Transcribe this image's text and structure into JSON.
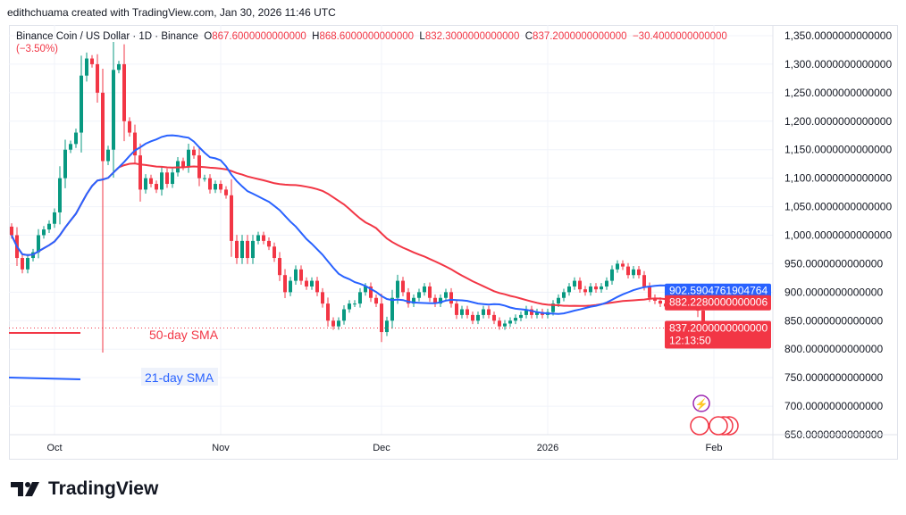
{
  "credit": "edithchuama created with TradingView.com, Jan 30, 2026 11:46 UTC",
  "legend": {
    "symbol": "Binance Coin / US Dollar · 1D · Binance",
    "o_label": "O",
    "o": "867.6000000000000",
    "h_label": "H",
    "h": "868.6000000000000",
    "l_label": "L",
    "l": "832.3000000000000",
    "c_label": "C",
    "c": "837.2000000000000",
    "change": "−30.4000000000000 (−3.50%)"
  },
  "colors": {
    "up": "#089981",
    "down": "#f23645",
    "sma21": "#2962ff",
    "sma50": "#f23645",
    "grid": "#f0f3fa"
  },
  "chart_data": {
    "type": "candlestick",
    "start_date": "2025-09-23",
    "closes": [
      1000,
      960,
      940,
      960,
      970,
      1000,
      1010,
      1020,
      1040,
      1100,
      1150,
      1160,
      1180,
      1280,
      1310,
      1300,
      1250,
      1130,
      1150,
      1290,
      1300,
      1200,
      1180,
      1140,
      1080,
      1100,
      1090,
      1080,
      1110,
      1090,
      1110,
      1130,
      1120,
      1150,
      1140,
      1100,
      1100,
      1080,
      1090,
      1080,
      1070,
      990,
      960,
      990,
      960,
      990,
      1000,
      990,
      980,
      960,
      930,
      900,
      920,
      940,
      920,
      910,
      920,
      900,
      880,
      850,
      840,
      850,
      870,
      880,
      880,
      900,
      910,
      890,
      880,
      830,
      850,
      890,
      920,
      900,
      880,
      890,
      900,
      910,
      890,
      880,
      890,
      900,
      880,
      860,
      870,
      860,
      850,
      860,
      870,
      860,
      850,
      840,
      845,
      850,
      855,
      860,
      870,
      860,
      865,
      860,
      865,
      880,
      890,
      900,
      910,
      920,
      905,
      900,
      910,
      905,
      910,
      920,
      940,
      950,
      945,
      930,
      940,
      930,
      910,
      890,
      885,
      880,
      875,
      880,
      885,
      890,
      895,
      900,
      867.6,
      837.2
    ],
    "ylim": [
      650,
      1350
    ],
    "y_ticks": [
      "1,350.0000000000000",
      "1,300.0000000000000",
      "1,250.0000000000000",
      "1,200.0000000000000",
      "1,150.0000000000000",
      "1,100.0000000000000",
      "1,050.0000000000000",
      "1,000.0000000000000",
      "950.0000000000000",
      "900.0000000000000",
      "850.0000000000000",
      "800.0000000000000",
      "750.0000000000000",
      "700.0000000000000",
      "650.0000000000000"
    ],
    "x_ticks": [
      {
        "label": "Oct",
        "date": "2025-10-01"
      },
      {
        "label": "Nov",
        "date": "2025-11-01"
      },
      {
        "label": "Dec",
        "date": "2025-12-01"
      },
      {
        "label": "2026",
        "date": "2026-01-01"
      },
      {
        "label": "Feb",
        "date": "2026-02-01"
      }
    ],
    "price_labels": {
      "sma21": "902.5904761904764",
      "sma50": "882.2280000000006",
      "last": "837.2000000000000",
      "countdown": "12:13:50"
    },
    "series": [
      {
        "name": "50-day SMA",
        "period": 50
      },
      {
        "name": "21-day SMA",
        "period": 21
      }
    ]
  },
  "logo": "TradingView"
}
